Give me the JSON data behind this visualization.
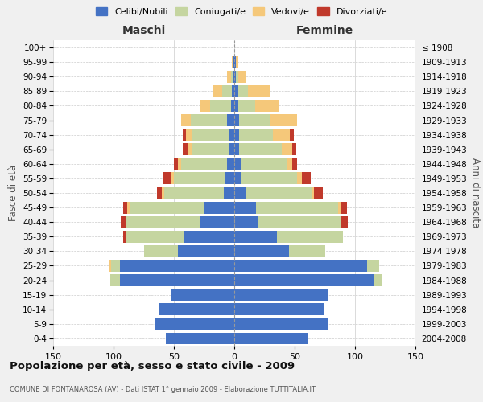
{
  "age_groups": [
    "0-4",
    "5-9",
    "10-14",
    "15-19",
    "20-24",
    "25-29",
    "30-34",
    "35-39",
    "40-44",
    "45-49",
    "50-54",
    "55-59",
    "60-64",
    "65-69",
    "70-74",
    "75-79",
    "80-84",
    "85-89",
    "90-94",
    "95-99",
    "100+"
  ],
  "birth_years": [
    "2004-2008",
    "1999-2003",
    "1994-1998",
    "1989-1993",
    "1984-1988",
    "1979-1983",
    "1974-1978",
    "1969-1973",
    "1964-1968",
    "1959-1963",
    "1954-1958",
    "1949-1953",
    "1944-1948",
    "1939-1943",
    "1934-1938",
    "1929-1933",
    "1924-1928",
    "1919-1923",
    "1914-1918",
    "1909-1913",
    "≤ 1908"
  ],
  "maschi": {
    "celibi": [
      57,
      66,
      63,
      52,
      95,
      95,
      47,
      42,
      28,
      25,
      9,
      8,
      6,
      5,
      5,
      6,
      3,
      2,
      1,
      1,
      0
    ],
    "coniugati": [
      0,
      0,
      0,
      0,
      8,
      7,
      28,
      48,
      62,
      62,
      49,
      42,
      38,
      30,
      30,
      30,
      17,
      8,
      2,
      0,
      0
    ],
    "vedovi": [
      0,
      0,
      0,
      0,
      0,
      2,
      0,
      0,
      0,
      2,
      2,
      2,
      3,
      3,
      5,
      8,
      8,
      8,
      3,
      1,
      0
    ],
    "divorziati": [
      0,
      0,
      0,
      0,
      0,
      0,
      0,
      2,
      4,
      3,
      4,
      7,
      3,
      5,
      3,
      0,
      0,
      0,
      0,
      0,
      0
    ]
  },
  "femmine": {
    "nubili": [
      61,
      78,
      74,
      78,
      115,
      110,
      45,
      35,
      20,
      18,
      9,
      6,
      5,
      4,
      4,
      4,
      3,
      3,
      1,
      1,
      0
    ],
    "coniugate": [
      0,
      0,
      0,
      0,
      7,
      10,
      30,
      55,
      68,
      68,
      55,
      46,
      39,
      35,
      28,
      26,
      14,
      8,
      2,
      0,
      0
    ],
    "vedove": [
      0,
      0,
      0,
      0,
      0,
      0,
      0,
      0,
      0,
      2,
      2,
      4,
      4,
      9,
      14,
      22,
      20,
      18,
      6,
      2,
      0
    ],
    "divorziate": [
      0,
      0,
      0,
      0,
      0,
      0,
      0,
      0,
      6,
      5,
      7,
      7,
      4,
      3,
      3,
      0,
      0,
      0,
      0,
      0,
      0
    ]
  },
  "colors": {
    "celibi": "#4472C4",
    "coniugati": "#C5D5A0",
    "vedovi": "#F5C87A",
    "divorziati": "#C0392B"
  },
  "xlim": 150,
  "title": "Popolazione per età, sesso e stato civile - 2009",
  "subtitle": "COMUNE DI FONTANAROSA (AV) - Dati ISTAT 1° gennaio 2009 - Elaborazione TUTTITALIA.IT",
  "ylabel_left": "Fasce di età",
  "ylabel_right": "Anni di nascita",
  "xlabel_maschi": "Maschi",
  "xlabel_femmine": "Femmine",
  "bg_color": "#f0f0f0",
  "plot_bg_color": "#ffffff"
}
